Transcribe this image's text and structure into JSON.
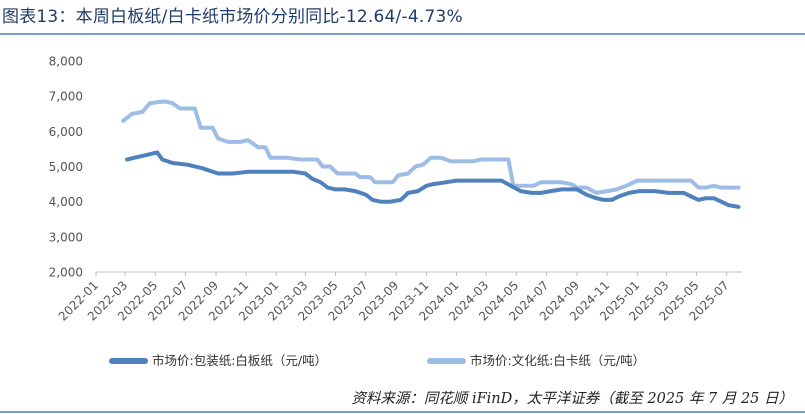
{
  "figure": {
    "title": "图表13：本周白板纸/白卡纸市场价分别同比-12.64/-4.73%",
    "source": "资料来源：同花顺 iFinD，太平洋证券（截至 2025 年 7 月 25 日）"
  },
  "colors": {
    "series1": "#4f81bd",
    "series2": "#9dbde6",
    "axis": "#bfbfbf",
    "rule": "#7f9cc2"
  },
  "chart_data": {
    "type": "line",
    "title": "",
    "xlabel": "",
    "ylabel": "",
    "ylim": [
      2000,
      8000
    ],
    "yticks": [
      "8,000",
      "7,000",
      "6,000",
      "5,000",
      "4,000",
      "3,000",
      "2,000"
    ],
    "ytick_values": [
      8000,
      7000,
      6000,
      5000,
      4000,
      3000,
      2000
    ],
    "xlim": [
      "2022-01",
      "2025-07"
    ],
    "xticks": [
      "2022-01",
      "2022-03",
      "2022-05",
      "2022-07",
      "2022-09",
      "2022-11",
      "2023-01",
      "2023-03",
      "2023-05",
      "2023-07",
      "2023-09",
      "2023-11",
      "2024-01",
      "2024-03",
      "2024-05",
      "2024-07",
      "2024-09",
      "2024-11",
      "2025-01",
      "2025-03",
      "2025-05",
      "2025-07"
    ],
    "grid": false,
    "legend": "bottom",
    "series": [
      {
        "name": "市场价:包装纸:白板纸（元/吨）",
        "points": [
          [
            "2022-03-05",
            5200
          ],
          [
            "2022-03-20",
            5250
          ],
          [
            "2022-04-05",
            5300
          ],
          [
            "2022-04-20",
            5350
          ],
          [
            "2022-05-05",
            5400
          ],
          [
            "2022-05-15",
            5200
          ],
          [
            "2022-06-05",
            5100
          ],
          [
            "2022-07-05",
            5050
          ],
          [
            "2022-08-05",
            4950
          ],
          [
            "2022-09-05",
            4800
          ],
          [
            "2022-10-05",
            4800
          ],
          [
            "2022-11-05",
            4850
          ],
          [
            "2022-12-05",
            4850
          ],
          [
            "2023-01-05",
            4850
          ],
          [
            "2023-02-05",
            4850
          ],
          [
            "2023-03-01",
            4800
          ],
          [
            "2023-03-15",
            4650
          ],
          [
            "2023-04-01",
            4550
          ],
          [
            "2023-04-15",
            4400
          ],
          [
            "2023-05-01",
            4350
          ],
          [
            "2023-05-20",
            4350
          ],
          [
            "2023-06-10",
            4300
          ],
          [
            "2023-07-01",
            4200
          ],
          [
            "2023-07-15",
            4050
          ],
          [
            "2023-08-01",
            4000
          ],
          [
            "2023-08-20",
            4000
          ],
          [
            "2023-09-10",
            4050
          ],
          [
            "2023-09-25",
            4250
          ],
          [
            "2023-10-15",
            4300
          ],
          [
            "2023-11-01",
            4450
          ],
          [
            "2023-11-15",
            4500
          ],
          [
            "2023-12-10",
            4550
          ],
          [
            "2024-01-01",
            4600
          ],
          [
            "2024-02-01",
            4600
          ],
          [
            "2024-03-01",
            4600
          ],
          [
            "2024-04-01",
            4600
          ],
          [
            "2024-04-20",
            4450
          ],
          [
            "2024-05-10",
            4300
          ],
          [
            "2024-06-01",
            4250
          ],
          [
            "2024-06-20",
            4250
          ],
          [
            "2024-07-10",
            4300
          ],
          [
            "2024-08-01",
            4350
          ],
          [
            "2024-09-01",
            4350
          ],
          [
            "2024-09-20",
            4200
          ],
          [
            "2024-10-10",
            4100
          ],
          [
            "2024-10-25",
            4050
          ],
          [
            "2024-11-10",
            4050
          ],
          [
            "2024-11-25",
            4150
          ],
          [
            "2024-12-15",
            4250
          ],
          [
            "2025-01-05",
            4300
          ],
          [
            "2025-02-05",
            4300
          ],
          [
            "2025-03-05",
            4250
          ],
          [
            "2025-04-05",
            4250
          ],
          [
            "2025-04-20",
            4150
          ],
          [
            "2025-05-05",
            4050
          ],
          [
            "2025-05-20",
            4100
          ],
          [
            "2025-06-05",
            4100
          ],
          [
            "2025-06-20",
            4000
          ],
          [
            "2025-07-05",
            3900
          ],
          [
            "2025-07-25",
            3850
          ]
        ]
      },
      {
        "name": "市场价:文化纸:白卡纸（元/吨）",
        "points": [
          [
            "2022-02-25",
            6300
          ],
          [
            "2022-03-15",
            6500
          ],
          [
            "2022-04-05",
            6550
          ],
          [
            "2022-04-20",
            6800
          ],
          [
            "2022-05-20",
            6850
          ],
          [
            "2022-06-05",
            6800
          ],
          [
            "2022-06-20",
            6650
          ],
          [
            "2022-07-20",
            6650
          ],
          [
            "2022-08-01",
            6100
          ],
          [
            "2022-08-25",
            6100
          ],
          [
            "2022-09-05",
            5800
          ],
          [
            "2022-09-25",
            5700
          ],
          [
            "2022-10-20",
            5700
          ],
          [
            "2022-11-05",
            5750
          ],
          [
            "2022-11-25",
            5550
          ],
          [
            "2022-12-10",
            5550
          ],
          [
            "2022-12-20",
            5250
          ],
          [
            "2023-01-20",
            5250
          ],
          [
            "2023-02-20",
            5200
          ],
          [
            "2023-03-25",
            5200
          ],
          [
            "2023-04-05",
            5000
          ],
          [
            "2023-04-20",
            5000
          ],
          [
            "2023-05-05",
            4800
          ],
          [
            "2023-06-10",
            4800
          ],
          [
            "2023-06-20",
            4700
          ],
          [
            "2023-07-10",
            4700
          ],
          [
            "2023-07-20",
            4550
          ],
          [
            "2023-08-25",
            4550
          ],
          [
            "2023-09-05",
            4750
          ],
          [
            "2023-09-25",
            4800
          ],
          [
            "2023-10-10",
            5000
          ],
          [
            "2023-10-25",
            5050
          ],
          [
            "2023-11-10",
            5250
          ],
          [
            "2023-12-01",
            5250
          ],
          [
            "2023-12-20",
            5150
          ],
          [
            "2024-01-20",
            5150
          ],
          [
            "2024-02-05",
            5150
          ],
          [
            "2024-02-20",
            5200
          ],
          [
            "2024-03-20",
            5200
          ],
          [
            "2024-04-15",
            5200
          ],
          [
            "2024-04-25",
            4450
          ],
          [
            "2024-06-05",
            4450
          ],
          [
            "2024-06-20",
            4550
          ],
          [
            "2024-08-01",
            4550
          ],
          [
            "2024-08-20",
            4500
          ],
          [
            "2024-09-01",
            4400
          ],
          [
            "2024-09-20",
            4400
          ],
          [
            "2024-10-10",
            4250
          ],
          [
            "2024-11-01",
            4300
          ],
          [
            "2024-11-20",
            4350
          ],
          [
            "2024-12-10",
            4450
          ],
          [
            "2025-01-01",
            4600
          ],
          [
            "2025-01-20",
            4600
          ],
          [
            "2025-02-20",
            4600
          ],
          [
            "2025-03-20",
            4600
          ],
          [
            "2025-04-20",
            4600
          ],
          [
            "2025-05-05",
            4400
          ],
          [
            "2025-05-20",
            4400
          ],
          [
            "2025-06-05",
            4450
          ],
          [
            "2025-06-20",
            4400
          ],
          [
            "2025-07-25",
            4400
          ]
        ]
      }
    ]
  }
}
